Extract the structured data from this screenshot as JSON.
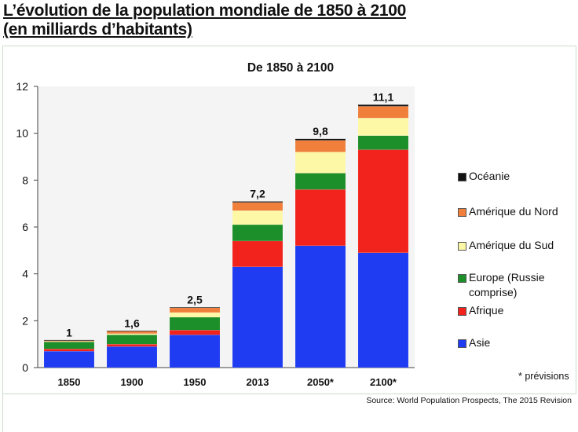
{
  "title_line1": "L’évolution de la population mondiale de 1850 à 2100",
  "title_line2": "(en milliards d’habitants)",
  "source": "Source: World Population Prospects, The 2015 Revision",
  "note": "* prévisions",
  "chart_data": {
    "type": "bar",
    "stacked": true,
    "title": "De 1850 à 2100",
    "xlabel": "",
    "ylabel": "",
    "ylim": [
      0,
      12
    ],
    "yticks": [
      0,
      2,
      4,
      6,
      8,
      10,
      12
    ],
    "grid": false,
    "legend_position": "right",
    "categories": [
      "1850",
      "1900",
      "1950",
      "2013",
      "2050*",
      "2100*"
    ],
    "totals": [
      "1",
      "1,6",
      "2,5",
      "7,2",
      "9,8",
      "11,1"
    ],
    "series": [
      {
        "name": "Asie",
        "color": "#1f3cf2",
        "values": [
          0.7,
          0.9,
          1.4,
          4.3,
          5.2,
          4.9
        ]
      },
      {
        "name": "Afrique",
        "color": "#f2231c",
        "values": [
          0.1,
          0.1,
          0.2,
          1.1,
          2.4,
          4.4
        ]
      },
      {
        "name": "Europe (Russie comprise)",
        "color": "#1d8f2a",
        "values": [
          0.3,
          0.4,
          0.55,
          0.7,
          0.7,
          0.6
        ]
      },
      {
        "name": "Amérique du Sud",
        "color": "#fdf8a6",
        "values": [
          0.02,
          0.05,
          0.2,
          0.6,
          0.9,
          0.75
        ]
      },
      {
        "name": "Amérique du Nord",
        "color": "#f07f3c",
        "values": [
          0.03,
          0.1,
          0.2,
          0.35,
          0.5,
          0.5
        ]
      },
      {
        "name": "Océanie",
        "color": "#111111",
        "values": [
          0.003,
          0.006,
          0.013,
          0.04,
          0.06,
          0.07
        ]
      }
    ],
    "legend_order": [
      "Océanie",
      "Amérique du Nord",
      "Amérique du Sud",
      "Europe (Russie comprise)",
      "Afrique",
      "Asie"
    ]
  }
}
